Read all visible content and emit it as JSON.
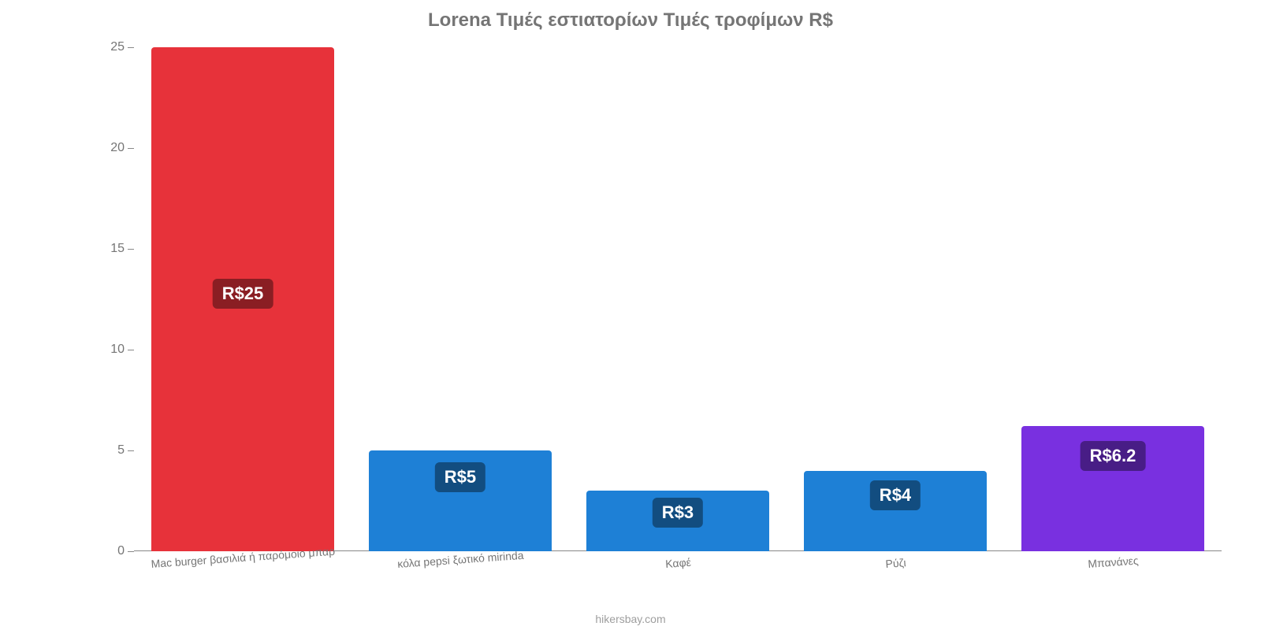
{
  "chart": {
    "type": "bar",
    "title": "Lorena Τιμές εστιατορίων Τιμές τροφίμων R$",
    "title_color": "#757575",
    "title_fontsize": 24,
    "background_color": "#ffffff",
    "axis_color": "#888888",
    "tick_label_color": "#757575",
    "tick_label_fontsize": 16,
    "x_label_fontsize": 14,
    "x_label_rotation_deg": -4,
    "bar_width_pct": 84,
    "data_label_fontsize": 22,
    "data_label_text_color": "#ffffff",
    "ylim": [
      0,
      25
    ],
    "yticks": [
      0,
      5,
      10,
      15,
      20,
      25
    ],
    "categories": [
      "Mac burger βασιλιά ή παρόμοιο μπαρ",
      "κόλα pepsi ξωτικό mirinda",
      "Καφέ",
      "Ρύζι",
      "Μπανάνες"
    ],
    "values": [
      25,
      5,
      3,
      4,
      6.2
    ],
    "data_labels": [
      "R$25",
      "R$5",
      "R$3",
      "R$4",
      "R$6.2"
    ],
    "bar_colors": [
      "#e7323a",
      "#1e80d6",
      "#1e80d6",
      "#1e80d6",
      "#7930e0"
    ],
    "data_label_bg_colors": [
      "#8a1e23",
      "#124d80",
      "#124d80",
      "#124d80",
      "#481d86"
    ],
    "attribution": "hikersbay.com",
    "attribution_color": "#9e9e9e",
    "attribution_fontsize": 14
  }
}
